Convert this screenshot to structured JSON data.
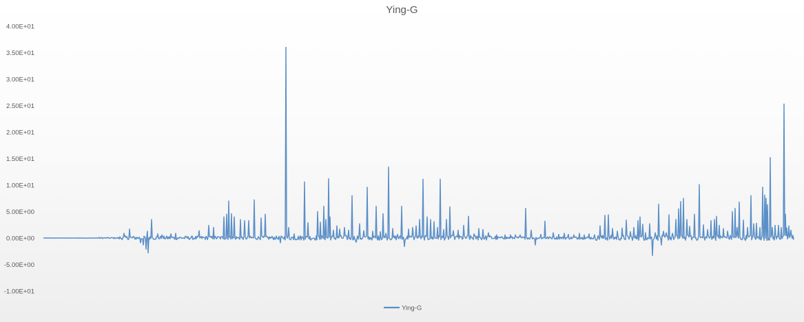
{
  "chart_data": {
    "type": "line",
    "title": "Ying-G",
    "xlabel": "",
    "ylabel": "",
    "ylim": [
      -10,
      40
    ],
    "y_ticks": [
      -10,
      -5,
      0,
      5,
      10,
      15,
      20,
      25,
      30,
      35,
      40
    ],
    "y_tick_labels": [
      "-1.00E+01",
      "-5.00E+00",
      "0.00E+00",
      "5.00E+00",
      "1.00E+01",
      "1.50E+01",
      "2.00E+01",
      "2.50E+01",
      "3.00E+01",
      "3.50E+01",
      "4.00E+01"
    ],
    "grid": false,
    "legend": "bottom",
    "n_points": 1090,
    "series": [
      {
        "name": "Ying-G",
        "color": "#5b8fc7",
        "spikes": [
          [
            117,
            0.9
          ],
          [
            125,
            1.7
          ],
          [
            141,
            -0.9
          ],
          [
            145,
            -1.3
          ],
          [
            149,
            -2.1
          ],
          [
            151,
            1.3
          ],
          [
            152,
            -2.8
          ],
          [
            157,
            3.5
          ],
          [
            166,
            0.8
          ],
          [
            172,
            0.6
          ],
          [
            185,
            0.8
          ],
          [
            192,
            0.9
          ],
          [
            226,
            1.4
          ],
          [
            240,
            2.4
          ],
          [
            247,
            2.0
          ],
          [
            262,
            4.0
          ],
          [
            266,
            4.5
          ],
          [
            269,
            7.0
          ],
          [
            273,
            4.6
          ],
          [
            277,
            4.0
          ],
          [
            286,
            3.5
          ],
          [
            292,
            3.3
          ],
          [
            298,
            3.3
          ],
          [
            306,
            7.2
          ],
          [
            316,
            3.8
          ],
          [
            322,
            4.5
          ],
          [
            344,
            -0.9
          ],
          [
            352,
            36.0
          ],
          [
            356,
            2.0
          ],
          [
            364,
            0.8
          ],
          [
            379,
            10.6
          ],
          [
            384,
            2.9
          ],
          [
            398,
            5.0
          ],
          [
            402,
            3.0
          ],
          [
            407,
            6.0
          ],
          [
            410,
            3.5
          ],
          [
            414,
            11.2
          ],
          [
            416,
            4.0
          ],
          [
            421,
            1.5
          ],
          [
            426,
            2.3
          ],
          [
            430,
            1.7
          ],
          [
            437,
            2.0
          ],
          [
            443,
            1.5
          ],
          [
            448,
            8.0
          ],
          [
            454,
            -0.8
          ],
          [
            459,
            2.7
          ],
          [
            465,
            1.4
          ],
          [
            470,
            9.6
          ],
          [
            478,
            1.3
          ],
          [
            483,
            6.0
          ],
          [
            489,
            1.2
          ],
          [
            493,
            4.6
          ],
          [
            497,
            0.9
          ],
          [
            501,
            13.4
          ],
          [
            507,
            1.8
          ],
          [
            514,
            0.7
          ],
          [
            520,
            6.0
          ],
          [
            524,
            -1.6
          ],
          [
            530,
            1.7
          ],
          [
            536,
            2.0
          ],
          [
            541,
            2.3
          ],
          [
            546,
            3.5
          ],
          [
            551,
            11.1
          ],
          [
            557,
            4.0
          ],
          [
            562,
            3.5
          ],
          [
            567,
            3.1
          ],
          [
            572,
            2.0
          ],
          [
            576,
            11.1
          ],
          [
            581,
            1.6
          ],
          [
            585,
            3.5
          ],
          [
            590,
            5.9
          ],
          [
            595,
            1.4
          ],
          [
            602,
            1.5
          ],
          [
            610,
            2.4
          ],
          [
            617,
            4.1
          ],
          [
            625,
            0.8
          ],
          [
            632,
            1.8
          ],
          [
            638,
            1.6
          ],
          [
            646,
            1.0
          ],
          [
            658,
            0.6
          ],
          [
            670,
            0.6
          ],
          [
            678,
            0.6
          ],
          [
            685,
            0.6
          ],
          [
            692,
            0.6
          ],
          [
            700,
            5.6
          ],
          [
            708,
            1.5
          ],
          [
            714,
            -1.3
          ],
          [
            722,
            0.7
          ],
          [
            728,
            3.2
          ],
          [
            740,
            1.0
          ],
          [
            748,
            0.7
          ],
          [
            756,
            0.9
          ],
          [
            762,
            0.7
          ],
          [
            770,
            0.6
          ],
          [
            778,
            0.9
          ],
          [
            785,
            0.6
          ],
          [
            792,
            0.8
          ],
          [
            800,
            0.6
          ],
          [
            808,
            2.3
          ],
          [
            815,
            4.3
          ],
          [
            820,
            4.4
          ],
          [
            826,
            1.8
          ],
          [
            833,
            1.3
          ],
          [
            840,
            1.9
          ],
          [
            846,
            3.4
          ],
          [
            852,
            1.2
          ],
          [
            857,
            2.0
          ],
          [
            863,
            3.3
          ],
          [
            866,
            4.0
          ],
          [
            870,
            2.6
          ],
          [
            874,
            1.0
          ],
          [
            880,
            2.7
          ],
          [
            884,
            -3.3
          ],
          [
            888,
            1.0
          ],
          [
            893,
            6.4
          ],
          [
            897,
            -1.3
          ],
          [
            900,
            1.3
          ],
          [
            904,
            1.0
          ],
          [
            908,
            4.4
          ],
          [
            913,
            0.9
          ],
          [
            918,
            3.5
          ],
          [
            922,
            5.5
          ],
          [
            925,
            6.9
          ],
          [
            929,
            7.5
          ],
          [
            934,
            3.5
          ],
          [
            938,
            2.2
          ],
          [
            945,
            4.5
          ],
          [
            952,
            10.1
          ],
          [
            958,
            2.5
          ],
          [
            964,
            1.6
          ],
          [
            969,
            3.3
          ],
          [
            974,
            3.5
          ],
          [
            977,
            4.1
          ],
          [
            981,
            2.4
          ],
          [
            987,
            1.8
          ],
          [
            993,
            1.3
          ],
          [
            1000,
            5.0
          ],
          [
            1004,
            5.6
          ],
          [
            1007,
            2.0
          ],
          [
            1010,
            6.8
          ],
          [
            1016,
            3.4
          ],
          [
            1022,
            2.0
          ],
          [
            1027,
            8.0
          ],
          [
            1031,
            2.7
          ],
          [
            1035,
            2.8
          ],
          [
            1040,
            2.0
          ],
          [
            1044,
            9.6
          ],
          [
            1047,
            8.1
          ],
          [
            1049,
            7.5
          ],
          [
            1051,
            6.3
          ],
          [
            1055,
            15.2
          ],
          [
            1058,
            2.0
          ],
          [
            1062,
            2.4
          ],
          [
            1067,
            2.4
          ],
          [
            1071,
            2.0
          ],
          [
            1075,
            25.3
          ],
          [
            1077,
            4.5
          ],
          [
            1079,
            1.9
          ],
          [
            1082,
            2.3
          ],
          [
            1085,
            1.5
          ],
          [
            1088,
            0.5
          ]
        ]
      }
    ]
  }
}
